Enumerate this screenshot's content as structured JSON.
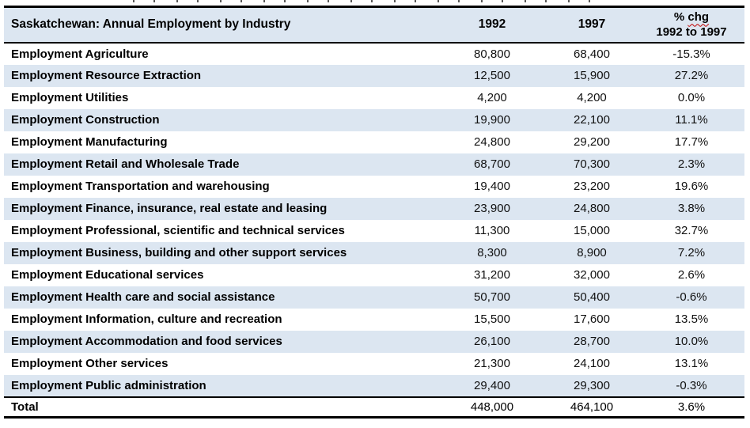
{
  "table": {
    "title": "Saskatchewan: Annual Employment by Industry",
    "header": {
      "col_1992": "1992",
      "col_1997": "1997",
      "chg_prefix": "% ",
      "chg_word": "chg",
      "chg_line2": "1992 to 1997"
    },
    "rows": [
      {
        "label": "Employment Agriculture",
        "y1992": "80,800",
        "y1997": "68,400",
        "chg": "-15.3%"
      },
      {
        "label": "Employment Resource Extraction",
        "y1992": "12,500",
        "y1997": "15,900",
        "chg": "27.2%"
      },
      {
        "label": "Employment Utilities",
        "y1992": "4,200",
        "y1997": "4,200",
        "chg": "0.0%"
      },
      {
        "label": "Employment Construction",
        "y1992": "19,900",
        "y1997": "22,100",
        "chg": "11.1%"
      },
      {
        "label": "Employment Manufacturing",
        "y1992": "24,800",
        "y1997": "29,200",
        "chg": "17.7%"
      },
      {
        "label": "Employment Retail and Wholesale Trade",
        "y1992": "68,700",
        "y1997": "70,300",
        "chg": "2.3%"
      },
      {
        "label": "Employment Transportation and warehousing",
        "y1992": "19,400",
        "y1997": "23,200",
        "chg": "19.6%"
      },
      {
        "label": "Employment Finance, insurance, real estate and leasing",
        "y1992": "23,900",
        "y1997": "24,800",
        "chg": "3.8%"
      },
      {
        "label": "Employment Professional, scientific and technical services",
        "y1992": "11,300",
        "y1997": "15,000",
        "chg": "32.7%"
      },
      {
        "label": "Employment Business, building and other support services",
        "y1992": "8,300",
        "y1997": "8,900",
        "chg": "7.2%"
      },
      {
        "label": "Employment Educational services",
        "y1992": "31,200",
        "y1997": "32,000",
        "chg": "2.6%"
      },
      {
        "label": "Employment Health care and social assistance",
        "y1992": "50,700",
        "y1997": "50,400",
        "chg": "-0.6%"
      },
      {
        "label": "Employment Information, culture and recreation",
        "y1992": "15,500",
        "y1997": "17,600",
        "chg": "13.5%"
      },
      {
        "label": "Employment Accommodation and food services",
        "y1992": "26,100",
        "y1997": "28,700",
        "chg": "10.0%"
      },
      {
        "label": "Employment Other services",
        "y1992": "21,300",
        "y1997": "24,100",
        "chg": "13.1%"
      },
      {
        "label": "Employment Public administration",
        "y1992": "29,400",
        "y1997": "29,300",
        "chg": "-0.3%"
      }
    ],
    "total": {
      "label": "Total",
      "y1992": "448,000",
      "y1997": "464,100",
      "chg": "3.6%"
    }
  },
  "colors": {
    "stripe": "#dce6f1",
    "border": "#000000",
    "squiggle_red": "#c00000",
    "text": "#000000"
  },
  "chart_data": {
    "type": "table",
    "title": "Saskatchewan: Annual Employment by Industry",
    "columns": [
      "Industry",
      "1992",
      "1997",
      "% chg 1992 to 1997"
    ],
    "rows": [
      [
        "Employment Agriculture",
        80800,
        68400,
        -15.3
      ],
      [
        "Employment Resource Extraction",
        12500,
        15900,
        27.2
      ],
      [
        "Employment Utilities",
        4200,
        4200,
        0.0
      ],
      [
        "Employment Construction",
        19900,
        22100,
        11.1
      ],
      [
        "Employment Manufacturing",
        24800,
        29200,
        17.7
      ],
      [
        "Employment Retail and Wholesale Trade",
        68700,
        70300,
        2.3
      ],
      [
        "Employment Transportation and warehousing",
        19400,
        23200,
        19.6
      ],
      [
        "Employment Finance, insurance, real estate and leasing",
        23900,
        24800,
        3.8
      ],
      [
        "Employment Professional, scientific and technical services",
        11300,
        15000,
        32.7
      ],
      [
        "Employment Business, building and other support services",
        8300,
        8900,
        7.2
      ],
      [
        "Employment Educational services",
        31200,
        32000,
        2.6
      ],
      [
        "Employment Health care and social assistance",
        50700,
        50400,
        -0.6
      ],
      [
        "Employment Information, culture and recreation",
        15500,
        17600,
        13.5
      ],
      [
        "Employment Accommodation and food services",
        26100,
        28700,
        10.0
      ],
      [
        "Employment Other services",
        21300,
        24100,
        13.1
      ],
      [
        "Employment Public administration",
        29400,
        29300,
        -0.3
      ]
    ],
    "total_row": [
      "Total",
      448000,
      464100,
      3.6
    ]
  }
}
